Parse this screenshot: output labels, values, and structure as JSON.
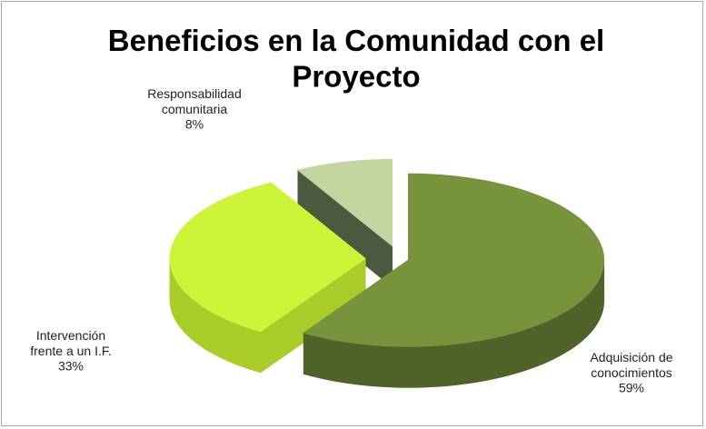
{
  "chart_data": {
    "type": "pie3d",
    "title": "Beneficios en la Comunidad con el\nProyecto",
    "categories": [
      "Adquisición de\nconocimientos",
      "Intervención\nfrente a un I.F.",
      "Responsabilidad\ncomunitaria"
    ],
    "values": [
      59,
      33,
      8
    ],
    "value_labels": [
      "59%",
      "33%",
      "8%"
    ],
    "colors": [
      "#77933c",
      "#ccf53a",
      "#c4d6a0"
    ],
    "side_colors": [
      "#4f6228",
      "#a9cc28",
      "#4b5a3e"
    ]
  }
}
